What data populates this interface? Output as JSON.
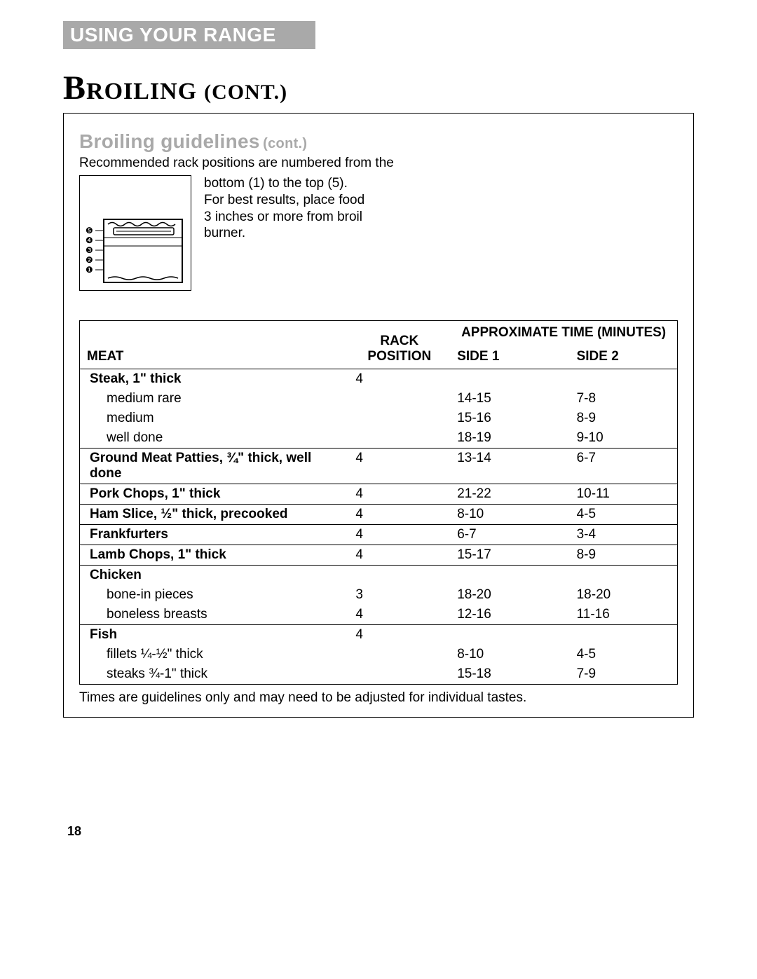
{
  "section_header": "USING YOUR RANGE",
  "title": {
    "main": "Broiling",
    "paren": "(CONT.)"
  },
  "subheading": {
    "main": "Broiling guidelines",
    "suffix": "(cont.)"
  },
  "intro_line1": "Recommended rack positions are numbered from the",
  "diagram_text": "bottom (1) to the top (5). For best results, place food 3 inches or more from broil burner.",
  "diagram": {
    "labels": [
      "❺",
      "❹",
      "❸",
      "❷",
      "❶"
    ],
    "rack_positions_y": [
      24,
      38,
      52,
      66,
      80
    ]
  },
  "table": {
    "headers": {
      "meat": "MEAT",
      "rack": "RACK POSITION",
      "time_group": "APPROXIMATE TIME (MINUTES)",
      "side1": "SIDE 1",
      "side2": "SIDE 2"
    },
    "rows": [
      {
        "type": "head",
        "meat": "Steak, 1\" thick",
        "rack": "4",
        "s1": "",
        "s2": "",
        "sep": true
      },
      {
        "type": "sub",
        "meat": "medium rare",
        "rack": "",
        "s1": "14-15",
        "s2": "7-8"
      },
      {
        "type": "sub",
        "meat": "medium",
        "rack": "",
        "s1": "15-16",
        "s2": "8-9"
      },
      {
        "type": "sub",
        "meat": "well done",
        "rack": "",
        "s1": "18-19",
        "s2": "9-10"
      },
      {
        "type": "head",
        "meat": "Ground Meat Patties, ¾\" thick, well done",
        "rack": "4",
        "s1": "13-14",
        "s2": "6-7",
        "sep": true
      },
      {
        "type": "head",
        "meat": "Pork Chops, 1\" thick",
        "rack": "4",
        "s1": "21-22",
        "s2": "10-11",
        "sep": true
      },
      {
        "type": "head",
        "meat": "Ham Slice, ½\" thick, precooked",
        "rack": "4",
        "s1": "8-10",
        "s2": "4-5",
        "sep": true
      },
      {
        "type": "head",
        "meat": "Frankfurters",
        "rack": "4",
        "s1": "6-7",
        "s2": "3-4",
        "sep": true
      },
      {
        "type": "head",
        "meat": "Lamb Chops, 1\" thick",
        "rack": "4",
        "s1": "15-17",
        "s2": "8-9",
        "sep": true
      },
      {
        "type": "head",
        "meat": "Chicken",
        "rack": "",
        "s1": "",
        "s2": "",
        "sep": true
      },
      {
        "type": "sub",
        "meat": "bone-in pieces",
        "rack": "3",
        "s1": "18-20",
        "s2": "18-20"
      },
      {
        "type": "sub",
        "meat": "boneless breasts",
        "rack": "4",
        "s1": "12-16",
        "s2": "11-16"
      },
      {
        "type": "head",
        "meat": "Fish",
        "rack": "4",
        "s1": "",
        "s2": "",
        "sep": true
      },
      {
        "type": "sub",
        "meat": "fillets ¼-½\" thick",
        "rack": "",
        "s1": "8-10",
        "s2": "4-5"
      },
      {
        "type": "sub",
        "meat": "steaks ¾-1\" thick",
        "rack": "",
        "s1": "15-18",
        "s2": "7-9"
      }
    ]
  },
  "footnote": "Times are guidelines only and may need to be adjusted for individual tastes.",
  "page_number": "18"
}
